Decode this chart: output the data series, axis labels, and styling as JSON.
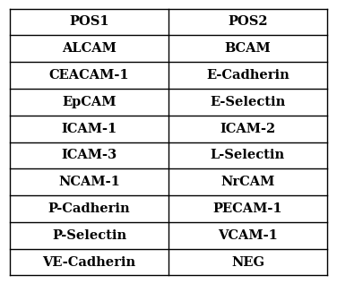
{
  "col1": [
    "POS1",
    "ALCAM",
    "CEACAM-1",
    "EpCAM",
    "ICAM-1",
    "ICAM-3",
    "NCAM-1",
    "P-Cadherin",
    "P-Selectin",
    "VE-Cadherin"
  ],
  "col2": [
    "POS2",
    "BCAM",
    "E-Cadherin",
    "E-Selectin",
    "ICAM-2",
    "L-Selectin",
    "NrCAM",
    "PECAM-1",
    "VCAM-1",
    "NEG"
  ],
  "background_color": "#ffffff",
  "text_color": "#000000",
  "border_color": "#000000",
  "font_size": 10.5,
  "fig_width": 3.76,
  "fig_height": 3.17,
  "dpi": 100
}
